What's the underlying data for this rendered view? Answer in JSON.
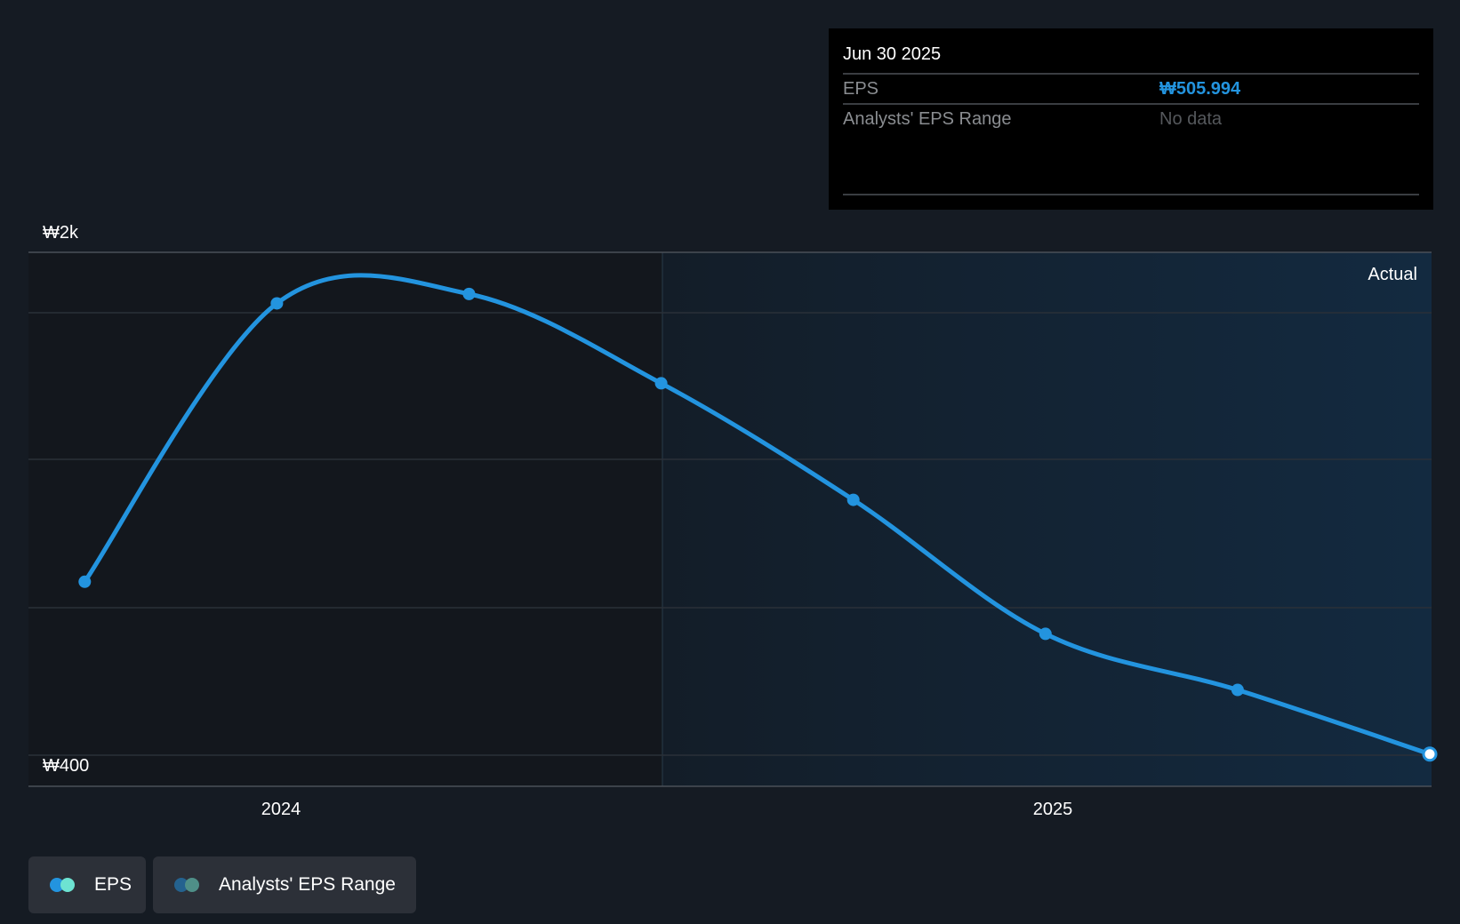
{
  "colors": {
    "eps": "#2394df",
    "eps_alt": "#6de3d2",
    "range": "#24628f",
    "range_alt": "#4f8f88"
  },
  "tooltip": {
    "date": "Jun 30 2025",
    "rows": [
      {
        "label": "EPS",
        "value": "₩505.994"
      },
      {
        "label": "Analysts' EPS Range",
        "value": "No data"
      }
    ]
  },
  "legend": [
    {
      "label": "EPS"
    },
    {
      "label": "Analysts' EPS Range"
    }
  ],
  "chart_data": {
    "type": "line",
    "title": "",
    "xlabel": "",
    "ylabel": "",
    "x": [
      "Sep 30 2023",
      "Dec 31 2023",
      "Mar 31 2024",
      "Jun 30 2024",
      "Sep 30 2024",
      "Dec 31 2024",
      "Mar 31 2025",
      "Jun 30 2025"
    ],
    "series": [
      {
        "name": "EPS",
        "values": [
          1019,
          1848,
          1876,
          1610,
          1263,
          864,
          697,
          505.994
        ]
      }
    ],
    "ylim": [
      410,
      2000
    ],
    "y_tick_labels": [
      "₩2k",
      "₩400"
    ],
    "x_tick_labels": [
      "2024",
      "2025"
    ],
    "region_label": "Actual",
    "grid": true,
    "legend_position": "bottom-left"
  }
}
